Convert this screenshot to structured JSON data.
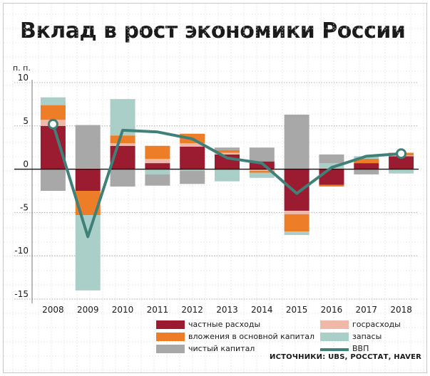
{
  "title": "Вклад в рост экономики России",
  "source": "ИСТОЧНИКИ: UBS, РОССТАТ, HAVER",
  "chart_data": {
    "type": "bar",
    "stacked": true,
    "y_unit_label": "п. п.",
    "ylim": [
      -15,
      10
    ],
    "yticks": [
      10,
      5,
      0,
      -5,
      -10,
      -15
    ],
    "categories": [
      "2008",
      "2009",
      "2010",
      "2011",
      "2012",
      "2013",
      "2014",
      "2015",
      "2016",
      "2017",
      "2018"
    ],
    "series": [
      {
        "name": "частные расходы",
        "color": "#9b1b30",
        "values": [
          5.0,
          -2.5,
          2.7,
          0.7,
          2.6,
          1.7,
          0.9,
          -4.8,
          -1.8,
          0.7,
          1.5
        ]
      },
      {
        "name": "госрасходы",
        "color": "#f0b8a8",
        "values": [
          0.7,
          0.1,
          0.3,
          0.5,
          0.4,
          0.2,
          -0.2,
          -0.4,
          0.1,
          0.0,
          0.1
        ]
      },
      {
        "name": "вложения в основной капитал",
        "color": "#ee7d27",
        "values": [
          1.7,
          -2.8,
          0.9,
          1.5,
          1.1,
          0.3,
          -0.2,
          -2.0,
          -0.2,
          0.5,
          0.3
        ]
      },
      {
        "name": "запасы",
        "color": "#a9cfc8",
        "values": [
          0.9,
          -8.7,
          4.2,
          -0.6,
          -0.2,
          -1.4,
          -0.6,
          -0.4,
          0.6,
          0.3,
          -0.5
        ]
      },
      {
        "name": "чистый капитал",
        "color": "#a8a8a8",
        "values": [
          -2.5,
          5.0,
          -2.0,
          -1.3,
          -1.5,
          0.3,
          1.6,
          6.3,
          1.0,
          -0.6,
          0.0
        ]
      }
    ],
    "line": {
      "name": "ВВП",
      "color": "#3f8079",
      "values": [
        5.2,
        -7.8,
        4.5,
        4.3,
        3.5,
        1.3,
        0.7,
        -2.8,
        0.2,
        1.5,
        1.8
      ]
    },
    "grid": true,
    "legend": {
      "placement": "bottom",
      "order": [
        "частные расходы",
        "госрасходы",
        "вложения в основной капитал",
        "запасы",
        "чистый капитал",
        "ВВП"
      ]
    }
  }
}
